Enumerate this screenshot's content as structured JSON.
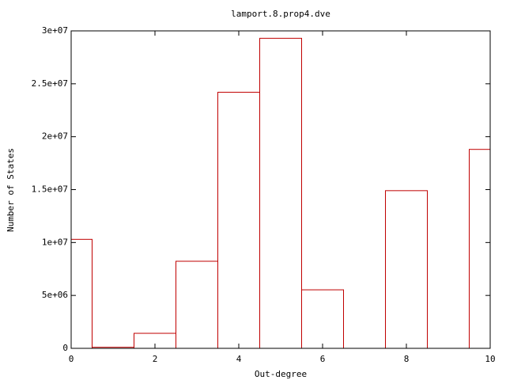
{
  "chart_data": {
    "type": "bar",
    "title": "lamport.8.prop4.dve",
    "x_label": "Out-degree",
    "y_label": "Number of States",
    "x": [
      0,
      1,
      2,
      3,
      4,
      5,
      6,
      7,
      8,
      9,
      10
    ],
    "values": [
      10300000,
      100000,
      1420000,
      8230000,
      24200000,
      29300000,
      5530000,
      0,
      14900000,
      0,
      18800000
    ],
    "color": "#c00000",
    "xlim": [
      0,
      10
    ],
    "xticks": [
      0,
      2,
      4,
      6,
      8,
      10
    ],
    "ylim": [
      0,
      30000000
    ],
    "yticks": [
      {
        "value": 0,
        "label": "0"
      },
      {
        "value": 5000000,
        "label": "5e+06"
      },
      {
        "value": 10000000,
        "label": "1e+07"
      },
      {
        "value": 15000000,
        "label": "1.5e+07"
      },
      {
        "value": 20000000,
        "label": "2e+07"
      },
      {
        "value": 25000000,
        "label": "2.5e+07"
      },
      {
        "value": 30000000,
        "label": "3e+07"
      }
    ],
    "grid": false
  }
}
